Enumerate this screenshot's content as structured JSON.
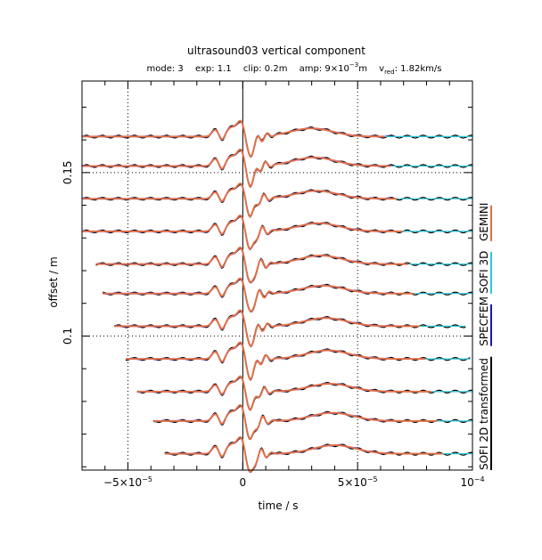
{
  "chart_data": {
    "type": "line",
    "title": "ultrasound03 vertical component",
    "subtitle": {
      "mode": "mode: 3",
      "exp": "exp: 1.1",
      "clip": "clip: 0.2m",
      "amp_base": "amp: 9×10",
      "amp_exp": "−3",
      "amp_unit": "m",
      "vred_base": "v",
      "vred_sub": "red",
      "vred_value": ": 1.82km/s"
    },
    "xlabel": "time / s",
    "ylabel": "offset / m",
    "xlim": [
      -7e-05,
      0.0001
    ],
    "ylim": [
      0.059,
      0.178
    ],
    "grid": "dotted",
    "x_ticks": [
      {
        "value": -5e-05,
        "base": "−5×10",
        "exp": "−5"
      },
      {
        "value": 0,
        "base": "0",
        "exp": ""
      },
      {
        "value": 5e-05,
        "base": "5×10",
        "exp": "−5"
      },
      {
        "value": 0.0001,
        "base": "10",
        "exp": "−4"
      }
    ],
    "y_ticks": [
      {
        "value": 0.1,
        "label": "0.1"
      },
      {
        "value": 0.15,
        "label": "0.15"
      }
    ],
    "traces": [
      {
        "offset": 0.161,
        "t_start": -7e-05,
        "t_end": 0.0001
      },
      {
        "offset": 0.152,
        "t_start": -7e-05,
        "t_end": 0.0001
      },
      {
        "offset": 0.142,
        "t_start": -7e-05,
        "t_end": 0.0001
      },
      {
        "offset": 0.132,
        "t_start": -7e-05,
        "t_end": 0.0001
      },
      {
        "offset": 0.122,
        "t_start": -6.4e-05,
        "t_end": 0.0001
      },
      {
        "offset": 0.113,
        "t_start": -6.1e-05,
        "t_end": 0.0001
      },
      {
        "offset": 0.103,
        "t_start": -5.6e-05,
        "t_end": 9.7e-05
      },
      {
        "offset": 0.093,
        "t_start": -5.1e-05,
        "t_end": 9.9e-05
      },
      {
        "offset": 0.083,
        "t_start": -4.6e-05,
        "t_end": 0.0001
      },
      {
        "offset": 0.074,
        "t_start": -3.9e-05,
        "t_end": 0.0001
      },
      {
        "offset": 0.064,
        "t_start": -3.4e-05,
        "t_end": 0.0001
      }
    ],
    "series": [
      {
        "name": "SOFI 2D transformed",
        "color": "#000000"
      },
      {
        "name": "SPECFEM",
        "color": "#1a1ab4"
      },
      {
        "name": "SOFI 3D",
        "color": "#2ec8d8"
      },
      {
        "name": "GEMINI",
        "color": "#e0704a"
      }
    ],
    "legend_position": "right"
  }
}
